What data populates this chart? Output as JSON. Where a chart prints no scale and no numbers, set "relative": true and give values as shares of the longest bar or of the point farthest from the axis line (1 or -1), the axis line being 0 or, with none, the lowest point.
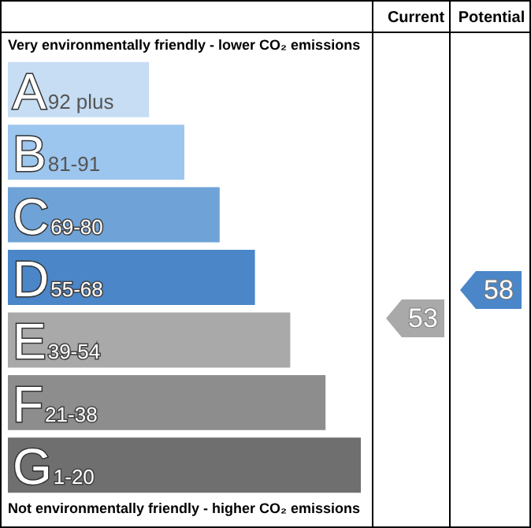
{
  "chart_data": {
    "type": "bar",
    "orientation": "horizontal",
    "relative": true,
    "title": "Very environmentally friendly - lower CO₂ emissions",
    "xlabel": "Not environmentally friendly - higher CO₂ emissions",
    "categories": [
      "A92 plus",
      "B81-91",
      "C69-80",
      "D55-68",
      "E39-54",
      "F21-38",
      "G1-20"
    ],
    "values": [
      0.4,
      0.5,
      0.6,
      0.7,
      0.8,
      0.9,
      1
    ],
    "colors": [
      "#c6ddf3",
      "#9dc6ee",
      "#6fa3d7",
      "#4a86c8",
      "#a9a9a9",
      "#8d8d8d",
      "#6f6f6f"
    ],
    "annotations": [
      "Current",
      "Potential",
      "53",
      "58"
    ],
    "legend": false
  }
}
